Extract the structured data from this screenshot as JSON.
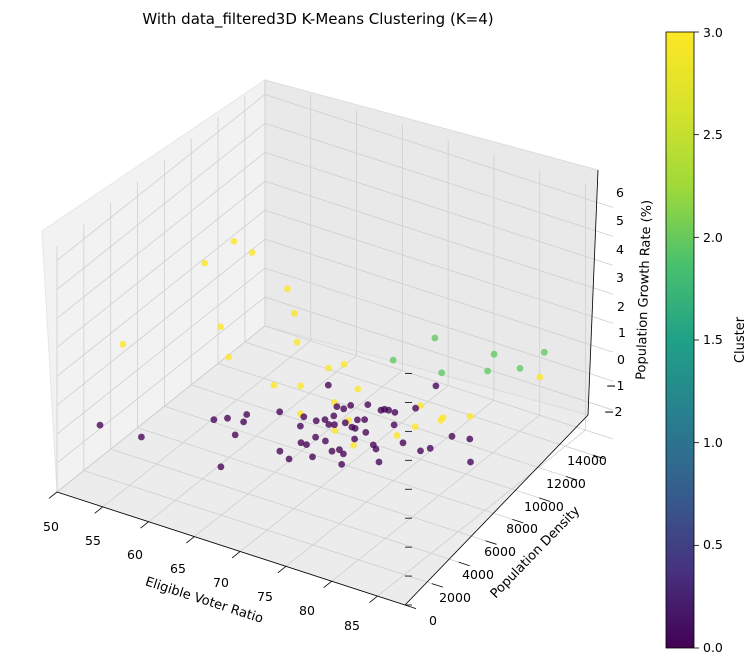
{
  "chart_data": {
    "type": "scatter",
    "projection": "3d",
    "title": "With data_filtered3D K-Means Clustering (K=4)",
    "xlabel": "Eligible Voter Ratio",
    "ylabel": "Population Density",
    "zlabel": "Population Growth Rate (%)",
    "xlim": [
      50,
      88
    ],
    "ylim": [
      0,
      15500
    ],
    "zlim": [
      -2,
      6.5
    ],
    "xticks": [
      "50",
      "55",
      "60",
      "65",
      "70",
      "75",
      "80",
      "85"
    ],
    "yticks": [
      "0",
      "2000",
      "4000",
      "6000",
      "8000",
      "10000",
      "12000",
      "14000"
    ],
    "zticks": [
      "−2",
      "−1",
      "0",
      "1",
      "2",
      "3",
      "4",
      "5",
      "6"
    ],
    "colorbar": {
      "label": "Cluster",
      "range": [
        0,
        3
      ],
      "ticks": [
        "0.0",
        "0.5",
        "1.0",
        "1.5",
        "2.0",
        "2.5",
        "3.0"
      ],
      "colormap": "viridis"
    },
    "grid": true,
    "legend": "none",
    "cluster_colors": [
      "#440154",
      "#31688e",
      "#5ec962",
      "#fde725"
    ],
    "series": [
      {
        "cluster": 0,
        "points": [
          [
            52.6,
            1430,
            0.05
          ],
          [
            58.1,
            760,
            0.45
          ],
          [
            60.7,
            5400,
            -0.35
          ],
          [
            61.2,
            4050,
            0.15
          ],
          [
            62.5,
            4750,
            -0.5
          ],
          [
            63.1,
            5200,
            0.1
          ],
          [
            64.0,
            4350,
            0.25
          ],
          [
            65.2,
            1840,
            -0.25
          ],
          [
            66.7,
            6740,
            -0.5
          ],
          [
            67.5,
            4650,
            0.85
          ],
          [
            68.4,
            4050,
            -0.2
          ],
          [
            68.6,
            5700,
            0.4
          ],
          [
            68.6,
            4600,
            -0.65
          ],
          [
            69.1,
            7180,
            1.0
          ],
          [
            69.4,
            5350,
            -0.35
          ],
          [
            69.8,
            5800,
            0.35
          ],
          [
            70.2,
            4400,
            0.15
          ],
          [
            70.3,
            6400,
            0.05
          ],
          [
            70.5,
            5050,
            -0.55
          ],
          [
            70.6,
            6800,
            0.55
          ],
          [
            70.7,
            6500,
            0.35
          ],
          [
            71.2,
            6900,
            0.5
          ],
          [
            71.5,
            5300,
            0.75
          ],
          [
            71.5,
            4600,
            0.4
          ],
          [
            71.5,
            7300,
            -0.25
          ],
          [
            71.6,
            5750,
            -0.5
          ],
          [
            71.6,
            6300,
            -0.65
          ],
          [
            72.2,
            4850,
            0.25
          ],
          [
            72.3,
            7000,
            -0.1
          ],
          [
            72.3,
            5450,
            0.6
          ],
          [
            72.4,
            6600,
            0.85
          ],
          [
            72.4,
            6200,
            0.4
          ],
          [
            72.6,
            7500,
            0.05
          ],
          [
            72.8,
            7600,
            0.55
          ],
          [
            73.1,
            7250,
            -0.25
          ],
          [
            73.2,
            6550,
            0.45
          ],
          [
            73.8,
            7900,
            0.35
          ],
          [
            74.0,
            5800,
            0.15
          ],
          [
            74.2,
            4700,
            -0.3
          ],
          [
            74.7,
            7550,
            0.6
          ],
          [
            74.8,
            6850,
            -0.5
          ],
          [
            75.1,
            8050,
            0.35
          ],
          [
            75.6,
            6100,
            0.0
          ],
          [
            75.7,
            3800,
            0.55
          ],
          [
            75.8,
            7100,
            0.85
          ],
          [
            76.3,
            6050,
            -0.5
          ],
          [
            77.0,
            8300,
            0.6
          ],
          [
            77.8,
            6150,
            0.9
          ],
          [
            78.4,
            6400,
            0.25
          ],
          [
            79.0,
            7300,
            -0.3
          ],
          [
            79.5,
            8100,
            1.7
          ],
          [
            80.2,
            7200,
            -0.05
          ],
          [
            82.0,
            7600,
            0.4
          ],
          [
            82.7,
            8500,
            -0.75
          ],
          [
            83.5,
            7900,
            0.35
          ]
        ]
      },
      {
        "cluster": 2,
        "points": [
          [
            70.3,
            11200,
            0.5
          ],
          [
            72.8,
            12600,
            1.0
          ],
          [
            75.3,
            11400,
            0.5
          ],
          [
            77.0,
            14150,
            0.3
          ],
          [
            80.1,
            11550,
            1.0
          ],
          [
            81.8,
            12800,
            0.8
          ],
          [
            82.4,
            14200,
            0.9
          ]
        ]
      },
      {
        "cluster": 3,
        "points": [
          [
            50.6,
            4500,
            1.5
          ],
          [
            54.4,
            8000,
            3.4
          ],
          [
            55.4,
            9500,
            3.7
          ],
          [
            56.2,
            10300,
            3.1
          ],
          [
            57.6,
            7000,
            1.9
          ],
          [
            59.2,
            6500,
            1.2
          ],
          [
            60.8,
            9800,
            2.5
          ],
          [
            62.6,
            9100,
            2.1
          ],
          [
            64.2,
            8200,
            1.6
          ],
          [
            64.6,
            6200,
            0.9
          ],
          [
            65.9,
            7300,
            0.6
          ],
          [
            66.9,
            8700,
            0.8
          ],
          [
            67.2,
            6400,
            0.1
          ],
          [
            68.3,
            8900,
            1.0
          ],
          [
            69.0,
            7700,
            0.2
          ],
          [
            69.8,
            8900,
            0.3
          ],
          [
            70.4,
            6800,
            -0.3
          ],
          [
            71.3,
            7200,
            0.0
          ],
          [
            72.7,
            6600,
            -0.5
          ],
          [
            74.6,
            10300,
            -0.3
          ],
          [
            75.4,
            8000,
            -0.4
          ],
          [
            76.8,
            8400,
            -0.1
          ],
          [
            77.8,
            9800,
            -0.2
          ],
          [
            79.0,
            8800,
            0.2
          ],
          [
            80.9,
            9700,
            0.2
          ],
          [
            82.2,
            14000,
            0.1
          ]
        ]
      }
    ]
  }
}
